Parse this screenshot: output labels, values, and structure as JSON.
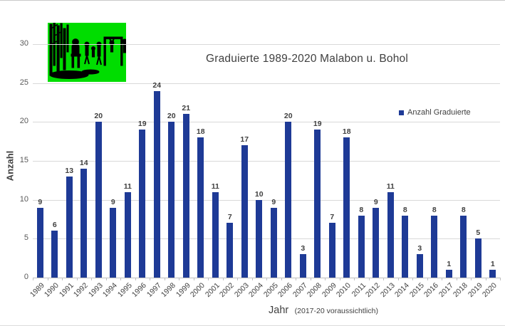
{
  "title": "Graduierte 1989-2020 Malabon u. Bohol",
  "legend": {
    "label": "Anzahl Graduierte",
    "swatch_icon": "square-swatch-icon"
  },
  "axes": {
    "y_title": "Anzahl",
    "x_title": "Jahr",
    "x_title_note": "(2017-20 voraussichtlich)"
  },
  "colors": {
    "bar": "#1e3a96",
    "grid": "#d9d9d9",
    "axis": "#bfbfbf",
    "text": "#3f3f3f",
    "logo_green": "#00dd00",
    "logo_black": "#000000"
  },
  "chart_data": {
    "type": "bar",
    "title": "Graduierte 1989-2020 Malabon u. Bohol",
    "xlabel": "Jahr",
    "xlabel_note": "(2017-20 voraussichtlich)",
    "ylabel": "Anzahl",
    "ylim": [
      0,
      30
    ],
    "yticks": [
      0,
      5,
      10,
      15,
      20,
      25,
      30
    ],
    "grid": true,
    "legend": [
      "Anzahl Graduierte"
    ],
    "legend_position": "inside-right",
    "categories": [
      "1989",
      "1990",
      "1991",
      "1992",
      "1993",
      "1994",
      "1995",
      "1996",
      "1997",
      "1998",
      "1999",
      "2000",
      "2001",
      "2002",
      "2003",
      "2004",
      "2005",
      "2006",
      "2007",
      "2008",
      "2009",
      "2010",
      "2011",
      "2012",
      "2013",
      "2014",
      "2015",
      "2016",
      "2017",
      "2018",
      "2019",
      "2020"
    ],
    "values": [
      9,
      6,
      13,
      14,
      20,
      9,
      11,
      19,
      24,
      20,
      21,
      18,
      11,
      7,
      17,
      10,
      9,
      20,
      3,
      19,
      7,
      18,
      8,
      9,
      11,
      8,
      3,
      8,
      1,
      8,
      5,
      1
    ],
    "bar_color": "#1e3a96",
    "data_labels": true
  }
}
